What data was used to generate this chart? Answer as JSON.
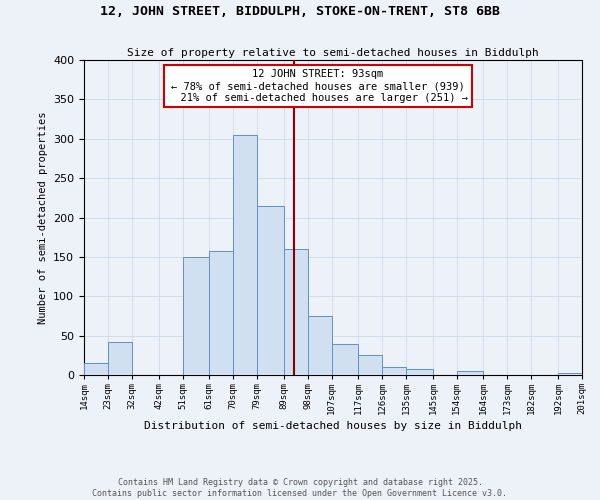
{
  "title1": "12, JOHN STREET, BIDDULPH, STOKE-ON-TRENT, ST8 6BB",
  "title2": "Size of property relative to semi-detached houses in Biddulph",
  "xlabel": "Distribution of semi-detached houses by size in Biddulph",
  "ylabel": "Number of semi-detached properties",
  "pct_smaller": 78,
  "n_smaller": 939,
  "pct_larger": 21,
  "n_larger": 251,
  "bin_labels": [
    "14sqm",
    "23sqm",
    "32sqm",
    "42sqm",
    "51sqm",
    "61sqm",
    "70sqm",
    "79sqm",
    "89sqm",
    "98sqm",
    "107sqm",
    "117sqm",
    "126sqm",
    "135sqm",
    "145sqm",
    "154sqm",
    "164sqm",
    "173sqm",
    "182sqm",
    "192sqm",
    "201sqm"
  ],
  "bin_edges": [
    14,
    23,
    32,
    42,
    51,
    61,
    70,
    79,
    89,
    98,
    107,
    117,
    126,
    135,
    145,
    154,
    164,
    173,
    182,
    192,
    201
  ],
  "bar_heights": [
    15,
    42,
    0,
    0,
    150,
    158,
    305,
    215,
    160,
    75,
    40,
    25,
    10,
    8,
    0,
    5,
    0,
    0,
    0,
    2
  ],
  "bar_color": "#d0e0f0",
  "bar_edge_color": "#6090c8",
  "vline_x": 93,
  "vline_color": "#8b0000",
  "ann_edge_color": "#cc0000",
  "grid_color": "#c8d4e4",
  "background_color": "#edf1f8",
  "footnote": "Contains HM Land Registry data © Crown copyright and database right 2025.\nContains public sector information licensed under the Open Government Licence v3.0.",
  "ylim": [
    0,
    400
  ],
  "yticks": [
    0,
    50,
    100,
    150,
    200,
    250,
    300,
    350,
    400
  ]
}
